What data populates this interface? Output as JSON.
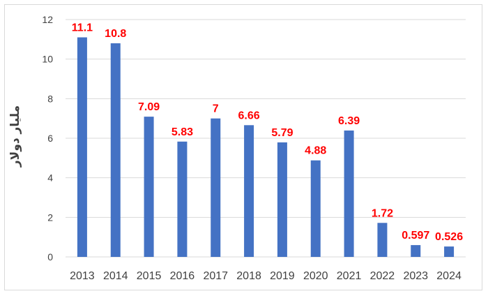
{
  "chart_data": {
    "type": "bar",
    "title": "",
    "xlabel": "",
    "ylabel": "مليار دولار",
    "categories": [
      "2013",
      "2014",
      "2015",
      "2016",
      "2017",
      "2018",
      "2019",
      "2020",
      "2021",
      "2022",
      "2023",
      "2024"
    ],
    "values": [
      11.1,
      10.8,
      7.09,
      5.83,
      7,
      6.66,
      5.79,
      4.88,
      6.39,
      1.72,
      0.597,
      0.526
    ],
    "data_labels": [
      "11.1",
      "10.8",
      "7.09",
      "5.83",
      "7",
      "6.66",
      "5.79",
      "4.88",
      "6.39",
      "1.72",
      "0.597",
      "0.526"
    ],
    "ylim": [
      0,
      12
    ],
    "yticks": [
      0,
      2,
      4,
      6,
      8,
      10,
      12
    ],
    "grid": true,
    "legend": "none",
    "colors": {
      "bar": "#4472C4",
      "label": "#FF0000",
      "grid": "#D9D9D9",
      "axis_text": "#404040"
    }
  }
}
